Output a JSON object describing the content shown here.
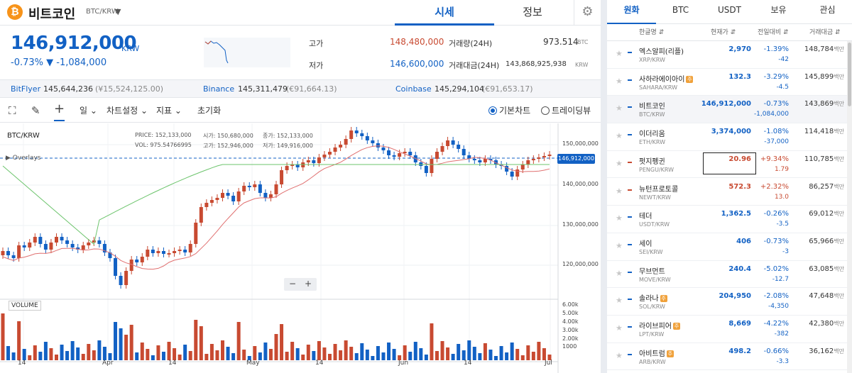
{
  "header": {
    "coin_name": "비트코인",
    "pair": "BTC/KRW",
    "tabs": [
      "시세",
      "정보"
    ]
  },
  "price": {
    "current": "146,912,000",
    "currency": "KRW",
    "change": "-0.73% ▼ -1,084,000",
    "high_label": "고가",
    "high": "148,480,000",
    "low_label": "저가",
    "low": "146,600,000",
    "vol_label": "거래량(24H)",
    "vol": "973.514",
    "vol_unit": "BTC",
    "amt_label": "거래대금(24H)",
    "amt": "143,868,925,938",
    "amt_unit": "KRW"
  },
  "exchanges": [
    {
      "name": "BitFlyer",
      "price": "145,644,236",
      "sub": "(¥15,524,125.00)"
    },
    {
      "name": "Binance",
      "price": "145,311,479",
      "sub": "(€91,664.13)"
    },
    {
      "name": "Coinbase",
      "price": "145,294,104",
      "sub": "(€91,653.17)"
    }
  ],
  "toolbar": {
    "period": "일",
    "chart_settings": "차트설정",
    "indicators": "지표",
    "reset": "초기화",
    "basic_chart": "기본차트",
    "tradingview": "트레이딩뷰"
  },
  "chart": {
    "symbol": "BTC/KRW",
    "overlays": "Overlays",
    "ohlc": {
      "price_k": "PRICE:",
      "price": "152,133,000",
      "open_k": "시가:",
      "open": "150,680,000",
      "close_k": "종가:",
      "close": "152,133,000",
      "vol_k": "VOL:",
      "vol": "975.54766995",
      "high_k": "고가:",
      "high": "152,946,000",
      "low_k": "저가:",
      "low": "149,916,000"
    },
    "current_tag": "146,912,000",
    "y_ticks": [
      "150,000,000",
      "140,000,000",
      "130,000,000",
      "120,000,000"
    ],
    "vol_ticks": [
      "6.00k",
      "5.00k",
      "4.00k",
      "3.00k",
      "2.00k",
      "1000"
    ],
    "x_ticks": [
      "14",
      "Apr",
      "14",
      "May",
      "14",
      "Jun",
      "14",
      "Jul"
    ],
    "volume_label": "VOLUME",
    "zoom_minus": "−",
    "zoom_plus": "+"
  },
  "market": {
    "tabs": [
      "원화",
      "BTC",
      "USDT",
      "보유",
      "관심"
    ],
    "cols": [
      "한글명 ⇵",
      "현재가 ⇵",
      "전일대비 ⇵",
      "거래대금 ⇵"
    ],
    "vol_unit": "백만",
    "rows": [
      {
        "name": "엑스알피(리플)",
        "sym": "XRP/KRW",
        "price": "2,970",
        "rate": "-1.39%",
        "amt": "-42",
        "vol": "148,784",
        "dir": "down",
        "badge": false
      },
      {
        "name": "사하라에이아이",
        "sym": "SAHARA/KRW",
        "price": "132.3",
        "rate": "-3.29%",
        "amt": "-4.5",
        "vol": "145,899",
        "dir": "down",
        "badge": true
      },
      {
        "name": "비트코인",
        "sym": "BTC/KRW",
        "price": "146,912,000",
        "rate": "-0.73%",
        "amt": "-1,084,000",
        "vol": "143,869",
        "dir": "down",
        "badge": false
      },
      {
        "name": "이더리움",
        "sym": "ETH/KRW",
        "price": "3,374,000",
        "rate": "-1.08%",
        "amt": "-37,000",
        "vol": "114,418",
        "dir": "down",
        "badge": false
      },
      {
        "name": "펏지펭귄",
        "sym": "PENGU/KRW",
        "price": "20.96",
        "rate": "+9.34%",
        "amt": "1.79",
        "vol": "110,785",
        "dir": "up",
        "badge": false
      },
      {
        "name": "뉴턴프로토콜",
        "sym": "NEWT/KRW",
        "price": "572.3",
        "rate": "+2.32%",
        "amt": "13.0",
        "vol": "86,257",
        "dir": "up",
        "badge": false
      },
      {
        "name": "테더",
        "sym": "USDT/KRW",
        "price": "1,362.5",
        "rate": "-0.26%",
        "amt": "-3.5",
        "vol": "69,012",
        "dir": "down",
        "badge": false
      },
      {
        "name": "세이",
        "sym": "SEI/KRW",
        "price": "406",
        "rate": "-0.73%",
        "amt": "-3",
        "vol": "65,966",
        "dir": "down",
        "badge": false
      },
      {
        "name": "무브먼트",
        "sym": "MOVE/KRW",
        "price": "240.4",
        "rate": "-5.02%",
        "amt": "-12.7",
        "vol": "63,085",
        "dir": "down",
        "badge": false
      },
      {
        "name": "솔라나",
        "sym": "SOL/KRW",
        "price": "204,950",
        "rate": "-2.08%",
        "amt": "-4,350",
        "vol": "47,648",
        "dir": "down",
        "badge": true
      },
      {
        "name": "라이브피어",
        "sym": "LPT/KRW",
        "price": "8,669",
        "rate": "-4.22%",
        "amt": "-382",
        "vol": "42,380",
        "dir": "down",
        "badge": true
      },
      {
        "name": "아비트럼",
        "sym": "ARB/KRW",
        "price": "498.2",
        "rate": "-0.66%",
        "amt": "-3.3",
        "vol": "36,162",
        "dir": "down",
        "badge": true
      }
    ]
  },
  "colors": {
    "up": "#c84a31",
    "down": "#1261c4",
    "ma_short": "#e07070",
    "ma_long": "#6cc46c"
  }
}
